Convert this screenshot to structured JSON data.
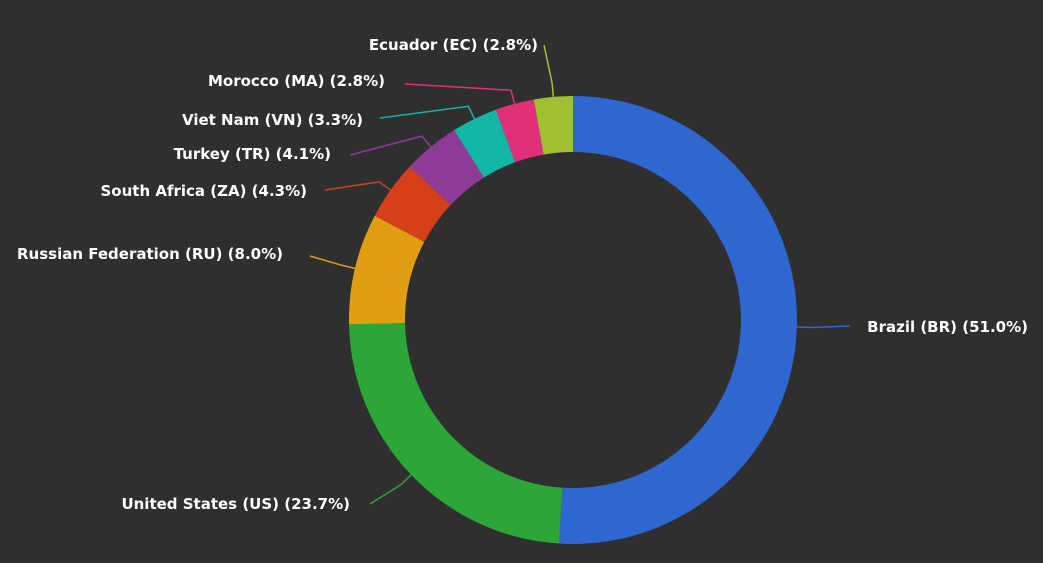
{
  "chart_data": {
    "type": "pie",
    "donut": true,
    "title": "",
    "legend": "none",
    "background": "#2f2f2f",
    "slices": [
      {
        "label": "Brazil (BR) (51.0%)",
        "value": 51.0,
        "color": "#2f67d1"
      },
      {
        "label": "United States (US) (23.7%)",
        "value": 23.7,
        "color": "#2ca637"
      },
      {
        "label": "Russian Federation (RU) (8.0%)",
        "value": 8.0,
        "color": "#e09f12"
      },
      {
        "label": "South Africa (ZA) (4.3%)",
        "value": 4.3,
        "color": "#d5401b"
      },
      {
        "label": "Turkey (TR) (4.1%)",
        "value": 4.1,
        "color": "#8e3b95"
      },
      {
        "label": "Viet Nam (VN) (3.3%)",
        "value": 3.3,
        "color": "#13b7a7"
      },
      {
        "label": "Morocco (MA) (2.8%)",
        "value": 2.8,
        "color": "#e0307a"
      },
      {
        "label": "Ecuador (EC) (2.8%)",
        "value": 2.8,
        "color": "#9fc032"
      }
    ]
  }
}
